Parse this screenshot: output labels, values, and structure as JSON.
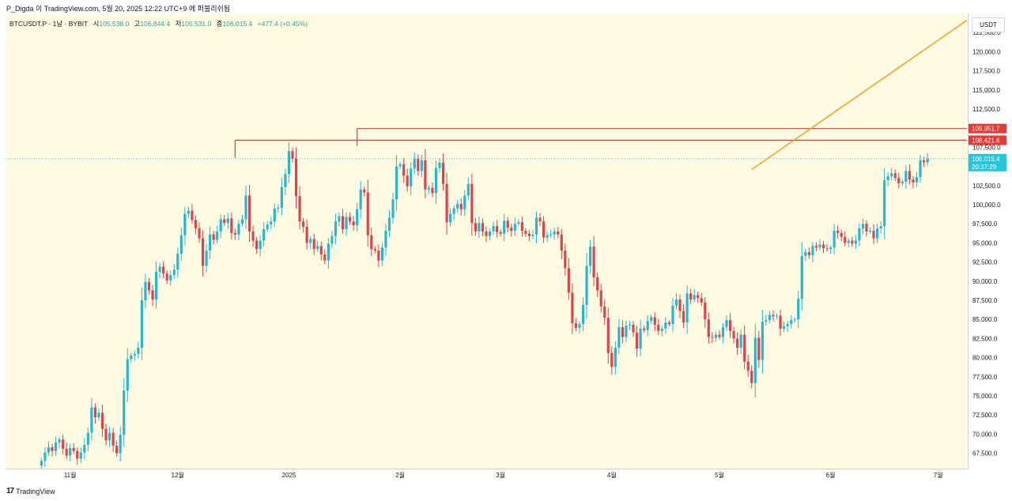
{
  "caption": "P_Digda 이 TradingView.com, 5월 20, 2025 12:22 UTC+9 에 퍼블리쉬됨",
  "legend": {
    "symbol": "BTCUSDT.P · 1날 · BYBIT",
    "open_label": "시",
    "open": "105,538.0",
    "high_label": "고",
    "high": "106,844.4",
    "low_label": "저",
    "low": "105,531.0",
    "close_label": "종",
    "close": "106,015.4",
    "change": "+477.4 (+0.45%)"
  },
  "currency": "USDT",
  "footer": {
    "logo": "17",
    "brand": "TradingView"
  },
  "colors": {
    "up": "#22b8cf",
    "down": "#e0414b",
    "background": "#fffbe3",
    "resistance": "#e53935",
    "trendline": "#f7a324",
    "current": "#26c6da"
  },
  "chart_data": {
    "type": "candlestick",
    "title": "BTCUSDT.P · 1날 · BYBIT",
    "ylim": [
      65500,
      125000
    ],
    "yticks": [
      67500,
      70000,
      72500,
      75000,
      77500,
      80000,
      82500,
      85000,
      87500,
      90000,
      92500,
      95000,
      97500,
      100000,
      102500,
      105000,
      107500,
      110000,
      112500,
      115000,
      117500,
      120000,
      122500
    ],
    "ytick_labels": [
      "67,500.0",
      "70,000.0",
      "72,500.0",
      "75,000.0",
      "77,500.0",
      "80,000.0",
      "82,500.0",
      "85,000.0",
      "87,500.0",
      "90,000.0",
      "92,500.0",
      "95,000.0",
      "97,500.0",
      "100,000.0",
      "102,500.0",
      "105,000.0",
      "107,500.0",
      "110,000.0",
      "112,500.0",
      "115,000.0",
      "117,500.0",
      "120,000.0",
      "122,500.0"
    ],
    "x_start": "2024-10-14",
    "x_end": "2025-07-09",
    "xticks": [
      {
        "date": "2024-11-01",
        "label": "11월"
      },
      {
        "date": "2024-12-01",
        "label": "12월"
      },
      {
        "date": "2025-01-01",
        "label": "2025"
      },
      {
        "date": "2025-02-01",
        "label": "2월"
      },
      {
        "date": "2025-03-01",
        "label": "3월"
      },
      {
        "date": "2025-04-01",
        "label": "4월"
      },
      {
        "date": "2025-05-01",
        "label": "5월"
      },
      {
        "date": "2025-06-01",
        "label": "6월"
      },
      {
        "date": "2025-07-01",
        "label": "7월"
      }
    ],
    "first_candle": "2024-10-24",
    "closes": [
      66500,
      67600,
      68300,
      67800,
      68900,
      69300,
      68100,
      67200,
      68200,
      67800,
      66800,
      67600,
      68600,
      70200,
      73500,
      72200,
      72800,
      70700,
      69200,
      70200,
      68500,
      67500,
      69900,
      75700,
      79800,
      80300,
      80500,
      81300,
      87500,
      89900,
      88800,
      87600,
      91200,
      91900,
      91000,
      90100,
      90800,
      91500,
      93600,
      96000,
      98800,
      99200,
      98000,
      96900,
      95600,
      92000,
      94000,
      96100,
      95400,
      96500,
      98100,
      97600,
      98200,
      96300,
      96100,
      97500,
      98100,
      101200,
      96500,
      95300,
      94200,
      95300,
      96800,
      97400,
      97800,
      99500,
      99600,
      102300,
      104000,
      107000,
      106000,
      101100,
      97800,
      97100,
      95000,
      95500,
      94200,
      94600,
      93500,
      92700,
      94900,
      95900,
      97800,
      98500,
      96800,
      98400,
      97800,
      97300,
      99400,
      102000,
      101600,
      96000,
      94200,
      94000,
      92700,
      94400,
      96600,
      98300,
      100700,
      105000,
      105300,
      103800,
      102400,
      104700,
      106000,
      104400,
      105800,
      102000,
      102200,
      101500,
      104800,
      105500,
      102700,
      97700,
      98800,
      99500,
      100100,
      99400,
      101200,
      102700,
      97600,
      96500,
      97600,
      96500,
      95900,
      96500,
      97200,
      96400,
      96200,
      97900,
      97000,
      96600,
      97500,
      97700,
      96600,
      96200,
      95900,
      96100,
      98300,
      97800,
      95700,
      96000,
      96100,
      96500,
      96100,
      94000,
      91700,
      88500,
      84500,
      83900,
      84400,
      86900,
      92000,
      94500,
      90500,
      88800,
      86700,
      85200,
      80600,
      78800,
      81300,
      84000,
      82700,
      84200,
      84300,
      83300,
      81200,
      83800,
      83600,
      84800,
      85300,
      84300,
      83500,
      83800,
      84600,
      84400,
      86800,
      87600,
      86100,
      84600,
      88400,
      87600,
      88200,
      87800,
      87200,
      85000,
      82700,
      82600,
      83000,
      82700,
      84000,
      84900,
      83500,
      82500,
      81300,
      83000,
      79500,
      78300,
      76700,
      82600,
      79700,
      84700,
      84900,
      85600,
      85400,
      85500,
      83800,
      84100,
      84400,
      84900,
      85000,
      87700,
      93300,
      93800,
      93400,
      94600,
      94400,
      94800,
      94300,
      94200,
      94400,
      96600,
      96300,
      95800,
      95000,
      95300,
      94900,
      95300,
      96900,
      97500,
      96500,
      96600,
      95600,
      96900,
      97200,
      103200,
      103700,
      104100,
      103500,
      102800,
      103000,
      104400,
      103300,
      102900,
      103600,
      105800,
      105538,
      106015
    ],
    "annotations": [
      {
        "type": "hline",
        "price": 109951.7,
        "label": "109,951.7",
        "start": "2025-01-20",
        "color": "#e53935"
      },
      {
        "type": "hline",
        "price": 108421.6,
        "label": "108,421.6",
        "start": "2024-12-17",
        "color": "#e53935"
      },
      {
        "type": "trendline",
        "from_date": "2025-05-10",
        "from_price": 104600,
        "to_date": "2025-07-09",
        "to_price": 124100,
        "color": "#f7a324"
      },
      {
        "type": "current-price",
        "price": 106015.4,
        "label": "106,015.4",
        "sub_label": "20:37:29"
      }
    ]
  }
}
